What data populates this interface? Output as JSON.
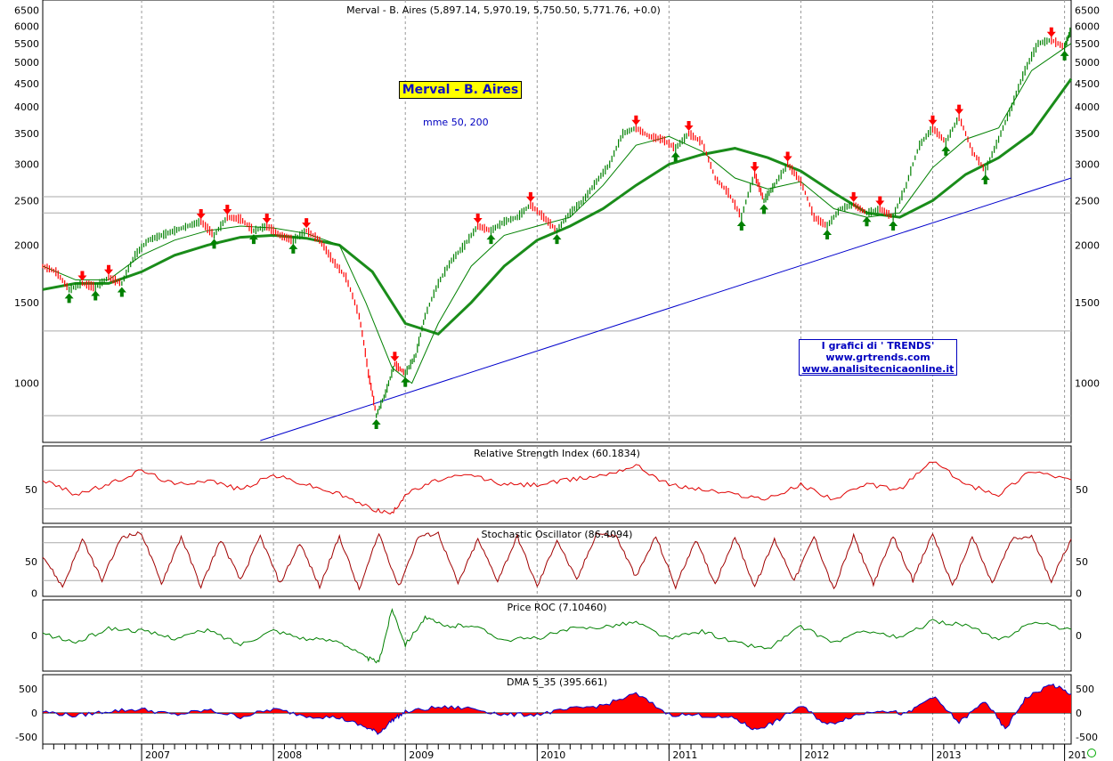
{
  "header": {
    "title": "Merval - B. Aires (5,897.14, 5,970.19, 5,750.50, 5,771.76, +0.0)"
  },
  "legend_box": "Merval - B. Aires",
  "ma_label": "mme 50, 200",
  "credit": {
    "line1": "I grafici di ' TRENDS'",
    "line2": "www.grtrends.com",
    "line3": "www.analisitecnicaonline.it"
  },
  "colors": {
    "price_up": "#008000",
    "price_down": "#ff0000",
    "ma_fast": "#008000",
    "ma_slow": "#1a8c1a",
    "trendline": "#0000cc",
    "rsi": "#e00000",
    "stoch": "#a00000",
    "roc": "#008000",
    "dma_fill": "#ff0000",
    "dma_line": "#0000cc",
    "grid": "#999999"
  },
  "chart_data": [
    {
      "type": "line",
      "title": "Merval - B. Aires (5,897.14, 5,970.19, 5,750.50, 5,771.76, +0.0)",
      "scale": "log",
      "ylim": [
        750,
        6600
      ],
      "y_ticks": [
        1000,
        1500,
        2000,
        2500,
        3000,
        3500,
        4000,
        4500,
        5000,
        5500,
        6000,
        6500
      ],
      "x_ticks": [
        "2007",
        "2008",
        "2009",
        "2010",
        "2011",
        "2012",
        "2013",
        "201"
      ],
      "x_range": [
        2006.25,
        2014.05
      ],
      "horizontal_lines": [
        2550,
        2350,
        1300,
        850
      ],
      "trendline": {
        "x": [
          2007.9,
          2014.05
        ],
        "y": [
          750,
          2800
        ]
      },
      "series": [
        {
          "x": [
            2006.25,
            2006.35,
            2006.45,
            2006.55,
            2006.65,
            2006.75,
            2006.85,
            2006.95,
            2007.05,
            2007.15,
            2007.25,
            2007.35,
            2007.45,
            2007.55,
            2007.65,
            2007.75,
            2007.85,
            2007.95,
            2008.05,
            2008.15,
            2008.25,
            2008.35,
            2008.45,
            2008.55,
            2008.65,
            2008.72,
            2008.78,
            2008.85,
            2008.92,
            2009.0,
            2009.08,
            2009.15,
            2009.25,
            2009.35,
            2009.45,
            2009.55,
            2009.65,
            2009.75,
            2009.85,
            2009.95,
            2010.05,
            2010.15,
            2010.25,
            2010.35,
            2010.45,
            2010.55,
            2010.65,
            2010.75,
            2010.85,
            2010.95,
            2011.05,
            2011.15,
            2011.25,
            2011.35,
            2011.45,
            2011.55,
            2011.65,
            2011.72,
            2011.8,
            2011.9,
            2012.0,
            2012.1,
            2012.2,
            2012.3,
            2012.4,
            2012.5,
            2012.6,
            2012.7,
            2012.8,
            2012.9,
            2013.0,
            2013.1,
            2013.2,
            2013.3,
            2013.4,
            2013.5,
            2013.6,
            2013.7,
            2013.8,
            2013.9,
            2014.0,
            2014.05
          ],
          "values": [
            1800,
            1750,
            1600,
            1650,
            1620,
            1700,
            1650,
            1900,
            2050,
            2100,
            2150,
            2200,
            2250,
            2100,
            2300,
            2280,
            2150,
            2200,
            2100,
            2050,
            2150,
            2050,
            1850,
            1700,
            1400,
            1050,
            850,
            950,
            1100,
            1050,
            1150,
            1400,
            1650,
            1850,
            2000,
            2200,
            2150,
            2250,
            2300,
            2450,
            2300,
            2150,
            2350,
            2500,
            2750,
            3000,
            3500,
            3600,
            3450,
            3400,
            3250,
            3500,
            3350,
            2800,
            2600,
            2300,
            2850,
            2500,
            2700,
            3000,
            2750,
            2300,
            2200,
            2400,
            2450,
            2350,
            2400,
            2300,
            2700,
            3300,
            3600,
            3350,
            3800,
            3200,
            2900,
            3400,
            4000,
            4800,
            5500,
            5600,
            5400,
            5900
          ]
        },
        {
          "name": "mme 50",
          "x": [
            2006.25,
            2006.5,
            2006.75,
            2007.0,
            2007.25,
            2007.5,
            2007.75,
            2008.0,
            2008.25,
            2008.5,
            2008.7,
            2008.9,
            2009.05,
            2009.25,
            2009.5,
            2009.75,
            2010.0,
            2010.25,
            2010.5,
            2010.75,
            2011.0,
            2011.25,
            2011.5,
            2011.75,
            2012.0,
            2012.25,
            2012.5,
            2012.75,
            2013.0,
            2013.25,
            2013.5,
            2013.75,
            2014.05
          ],
          "values": [
            1800,
            1680,
            1680,
            1900,
            2050,
            2150,
            2200,
            2180,
            2120,
            2000,
            1500,
            1080,
            1000,
            1350,
            1800,
            2100,
            2200,
            2300,
            2700,
            3300,
            3450,
            3200,
            2800,
            2650,
            2750,
            2400,
            2300,
            2350,
            2950,
            3400,
            3600,
            4800,
            5500
          ]
        },
        {
          "name": "mme 200",
          "x": [
            2006.25,
            2006.5,
            2006.75,
            2007.0,
            2007.25,
            2007.5,
            2007.75,
            2008.0,
            2008.25,
            2008.5,
            2008.75,
            2009.0,
            2009.25,
            2009.5,
            2009.75,
            2010.0,
            2010.25,
            2010.5,
            2010.75,
            2011.0,
            2011.25,
            2011.5,
            2011.75,
            2012.0,
            2012.25,
            2012.5,
            2012.75,
            2013.0,
            2013.25,
            2013.5,
            2013.75,
            2014.05
          ],
          "values": [
            1600,
            1650,
            1650,
            1750,
            1900,
            2000,
            2080,
            2100,
            2070,
            2000,
            1750,
            1350,
            1280,
            1500,
            1800,
            2050,
            2200,
            2400,
            2700,
            3000,
            3150,
            3250,
            3100,
            2900,
            2600,
            2350,
            2300,
            2500,
            2850,
            3100,
            3500,
            4600
          ]
        }
      ]
    },
    {
      "type": "line",
      "title": "Relative Strength Index (60.1834)",
      "y_ticks": [
        50
      ],
      "ylim": [
        15,
        95
      ],
      "reference_lines": [
        70,
        30
      ],
      "series": [
        {
          "x": [
            2006.25,
            2006.5,
            2006.75,
            2007.0,
            2007.25,
            2007.5,
            2007.75,
            2008.0,
            2008.25,
            2008.5,
            2008.75,
            2008.9,
            2009.0,
            2009.25,
            2009.5,
            2009.75,
            2010.0,
            2010.25,
            2010.5,
            2010.75,
            2011.0,
            2011.25,
            2011.5,
            2011.75,
            2012.0,
            2012.25,
            2012.5,
            2012.75,
            2013.0,
            2013.25,
            2013.5,
            2013.75,
            2014.05
          ],
          "values": [
            60,
            45,
            55,
            70,
            55,
            60,
            50,
            65,
            55,
            45,
            30,
            25,
            45,
            60,
            65,
            55,
            55,
            60,
            65,
            75,
            55,
            50,
            45,
            40,
            55,
            40,
            55,
            50,
            80,
            55,
            45,
            70,
            60
          ]
        }
      ]
    },
    {
      "type": "line",
      "title": "Stochastic Oscillator (86.4094)",
      "y_ticks": [
        0,
        50
      ],
      "ylim": [
        -5,
        105
      ],
      "reference_lines": [
        80,
        20
      ],
      "series": [
        {
          "x": [
            2006.25,
            2006.4,
            2006.55,
            2006.7,
            2006.85,
            2007.0,
            2007.15,
            2007.3,
            2007.45,
            2007.6,
            2007.75,
            2007.9,
            2008.05,
            2008.2,
            2008.35,
            2008.5,
            2008.65,
            2008.8,
            2008.95,
            2009.1,
            2009.25,
            2009.4,
            2009.55,
            2009.7,
            2009.85,
            2010.0,
            2010.15,
            2010.3,
            2010.45,
            2010.6,
            2010.75,
            2010.9,
            2011.05,
            2011.2,
            2011.35,
            2011.5,
            2011.65,
            2011.8,
            2011.95,
            2012.1,
            2012.25,
            2012.4,
            2012.55,
            2012.7,
            2012.85,
            2013.0,
            2013.15,
            2013.3,
            2013.45,
            2013.6,
            2013.75,
            2013.9,
            2014.05
          ],
          "values": [
            60,
            10,
            85,
            20,
            90,
            95,
            15,
            90,
            10,
            85,
            20,
            90,
            15,
            80,
            10,
            90,
            5,
            95,
            10,
            90,
            95,
            15,
            85,
            20,
            90,
            10,
            85,
            20,
            95,
            90,
            25,
            90,
            10,
            85,
            15,
            90,
            10,
            85,
            20,
            90,
            5,
            90,
            15,
            90,
            20,
            95,
            10,
            90,
            15,
            85,
            90,
            20,
            86
          ]
        }
      ]
    },
    {
      "type": "line",
      "title": "Price ROC (7.10460)",
      "y_ticks": [
        0
      ],
      "ylim": [
        -40,
        40
      ],
      "series": [
        {
          "x": [
            2006.25,
            2006.5,
            2006.75,
            2007.0,
            2007.25,
            2007.5,
            2007.75,
            2008.0,
            2008.25,
            2008.5,
            2008.7,
            2008.8,
            2008.9,
            2009.0,
            2009.15,
            2009.3,
            2009.5,
            2009.75,
            2010.0,
            2010.25,
            2010.5,
            2010.75,
            2011.0,
            2011.25,
            2011.5,
            2011.75,
            2012.0,
            2012.25,
            2012.5,
            2012.75,
            2013.0,
            2013.25,
            2013.5,
            2013.75,
            2014.05
          ],
          "values": [
            2,
            -8,
            8,
            5,
            -3,
            6,
            -10,
            6,
            -4,
            -6,
            -25,
            -30,
            30,
            -10,
            20,
            10,
            12,
            -5,
            -3,
            7,
            10,
            15,
            -4,
            5,
            -8,
            -15,
            10,
            -8,
            6,
            -3,
            16,
            12,
            -6,
            15,
            7
          ]
        }
      ]
    },
    {
      "type": "area",
      "title": "DMA 5_35 (395.661)",
      "y_ticks": [
        -500,
        0,
        500
      ],
      "ylim": [
        -650,
        800
      ],
      "series": [
        {
          "x": [
            2006.25,
            2006.5,
            2006.75,
            2007.0,
            2007.25,
            2007.5,
            2007.75,
            2008.0,
            2008.25,
            2008.5,
            2008.7,
            2008.8,
            2008.9,
            2009.0,
            2009.25,
            2009.5,
            2009.75,
            2010.0,
            2010.25,
            2010.5,
            2010.75,
            2011.0,
            2011.25,
            2011.5,
            2011.65,
            2011.8,
            2012.0,
            2012.2,
            2012.4,
            2012.6,
            2012.8,
            2013.0,
            2013.2,
            2013.4,
            2013.55,
            2013.7,
            2013.9,
            2014.05
          ],
          "values": [
            30,
            -60,
            40,
            80,
            -40,
            60,
            -80,
            80,
            -60,
            -100,
            -300,
            -420,
            -150,
            20,
            120,
            100,
            -40,
            -30,
            80,
            160,
            400,
            -30,
            -50,
            -120,
            -350,
            -200,
            150,
            -250,
            -60,
            70,
            -30,
            350,
            -200,
            250,
            -350,
            300,
            600,
            395
          ]
        }
      ]
    }
  ]
}
